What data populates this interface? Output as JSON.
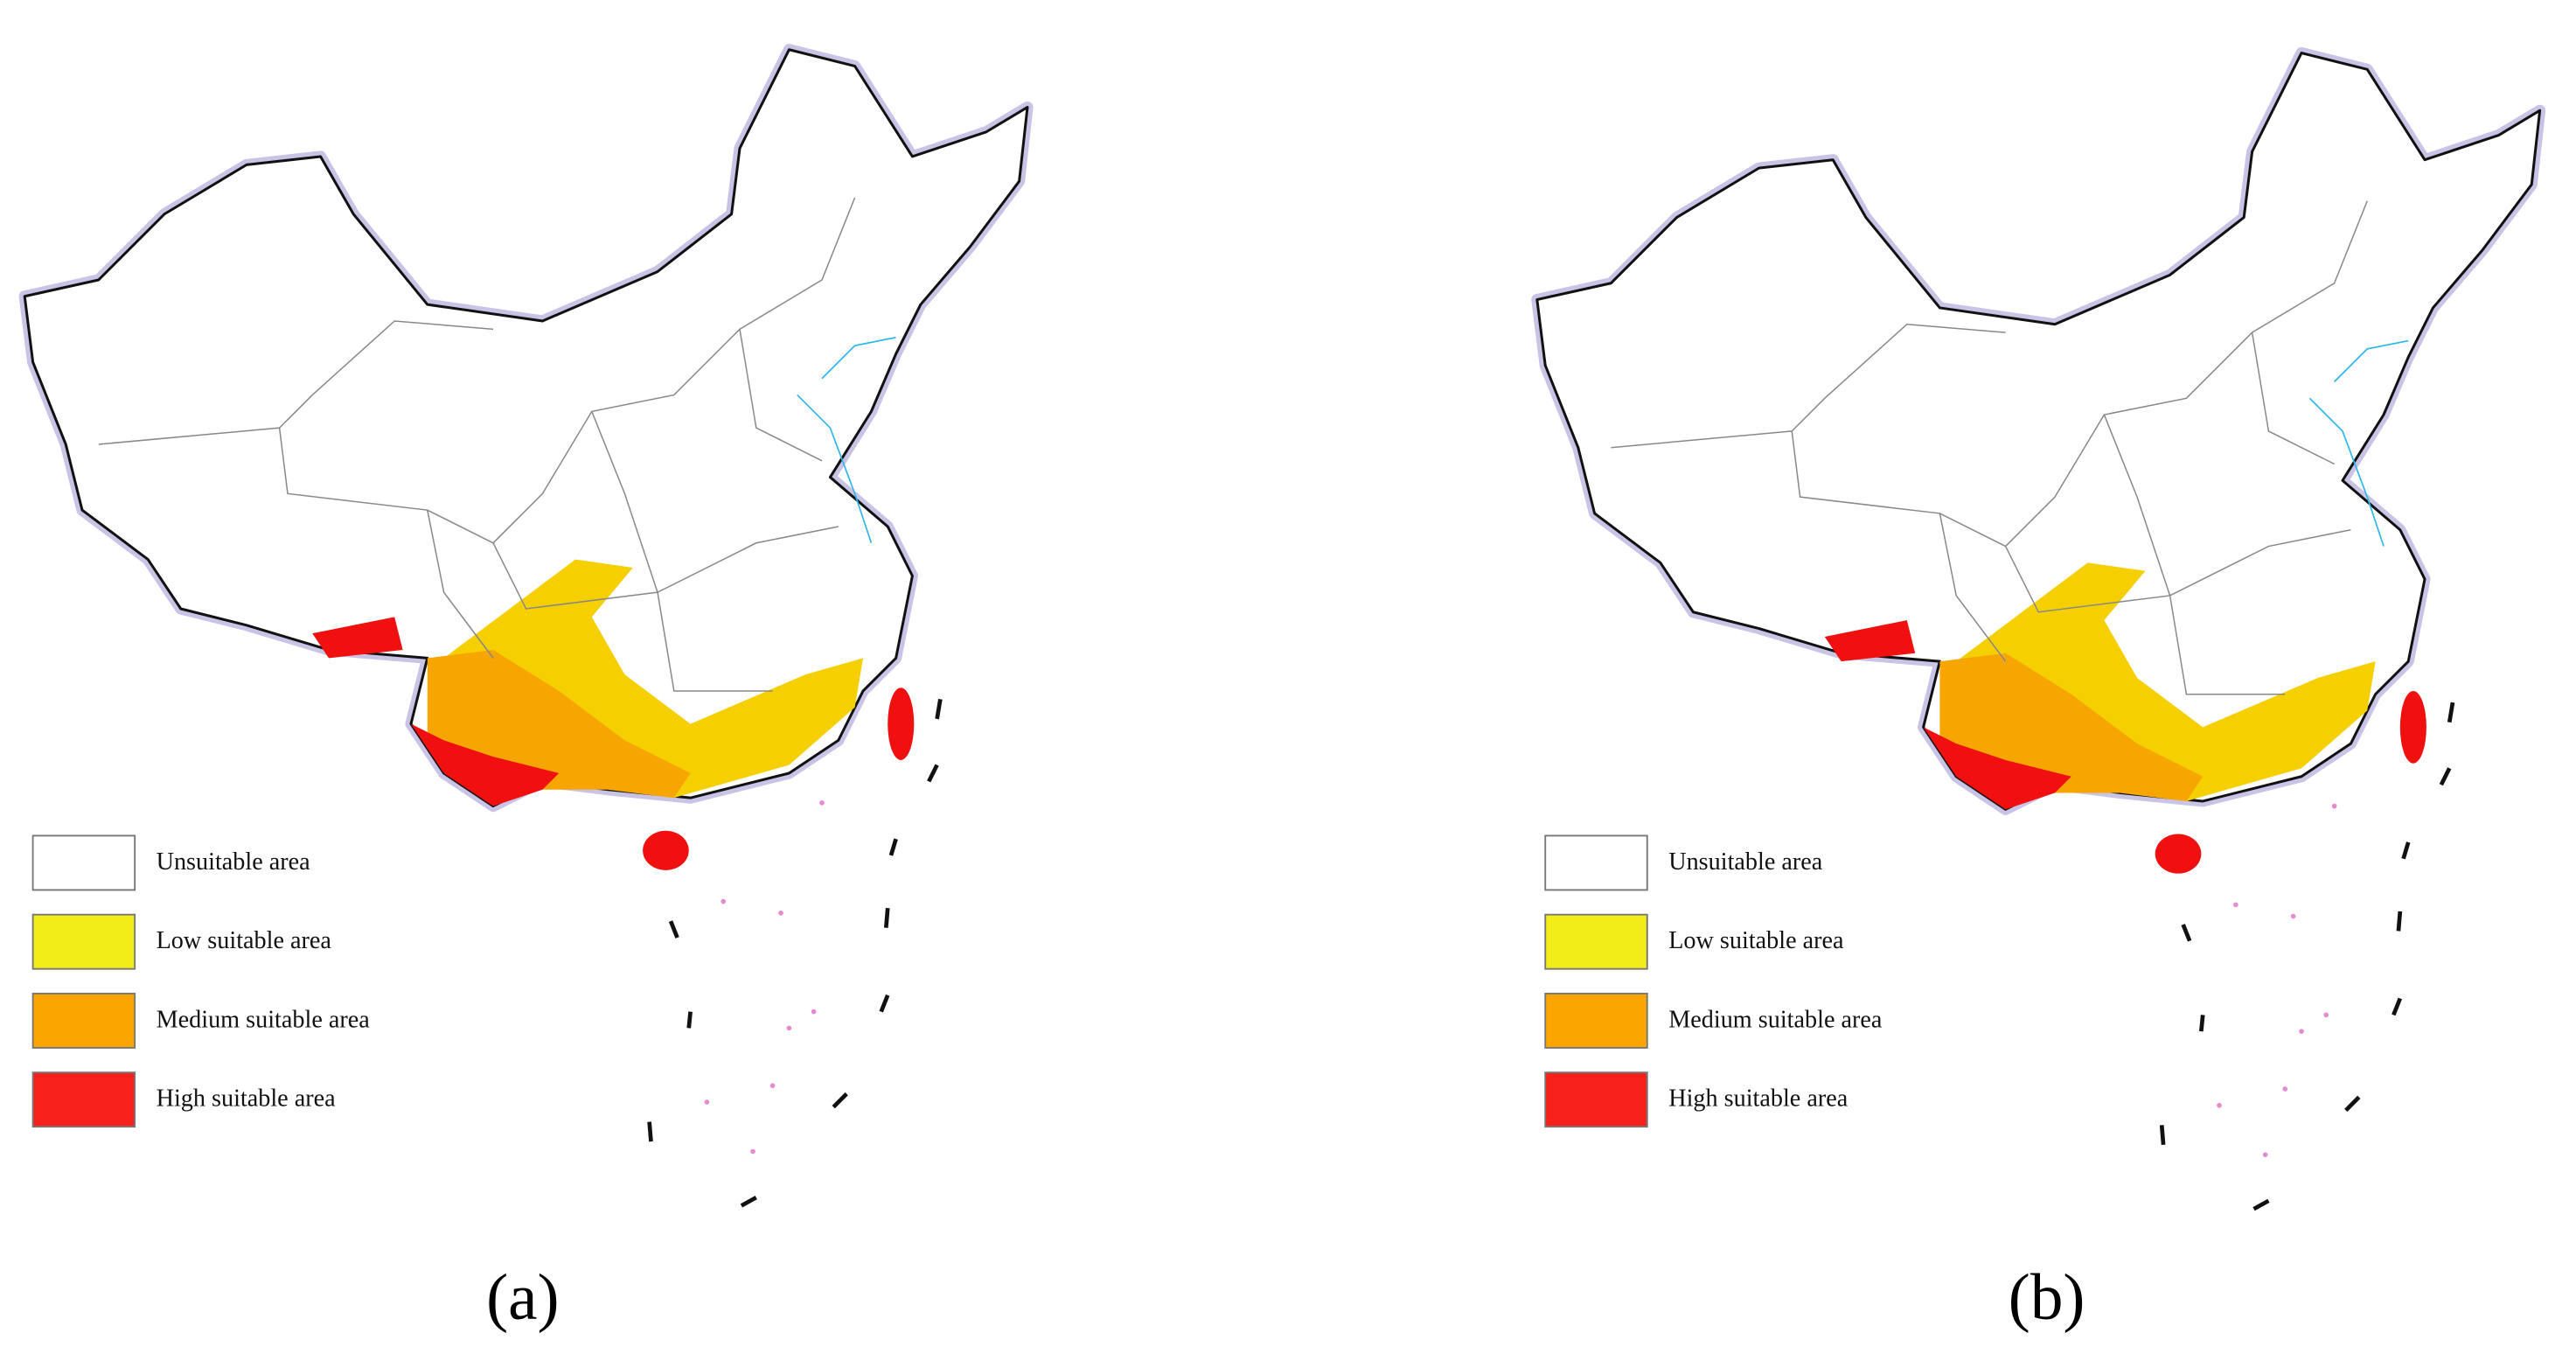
{
  "panels": [
    {
      "label": "(a)",
      "legend": [
        {
          "label": "Unsuitable area",
          "color": "#ffffff"
        },
        {
          "label": "Low suitable area",
          "color": "#f2ec18"
        },
        {
          "label": "Medium suitable area",
          "color": "#fba500"
        },
        {
          "label": "High suitable area",
          "color": "#f8201a"
        }
      ]
    },
    {
      "label": "(b)",
      "legend": [
        {
          "label": "Unsuitable area",
          "color": "#ffffff"
        },
        {
          "label": "Low suitable area",
          "color": "#f2ec18"
        },
        {
          "label": "Medium suitable area",
          "color": "#fba500"
        },
        {
          "label": "High suitable area",
          "color": "#f8201a"
        }
      ]
    }
  ]
}
